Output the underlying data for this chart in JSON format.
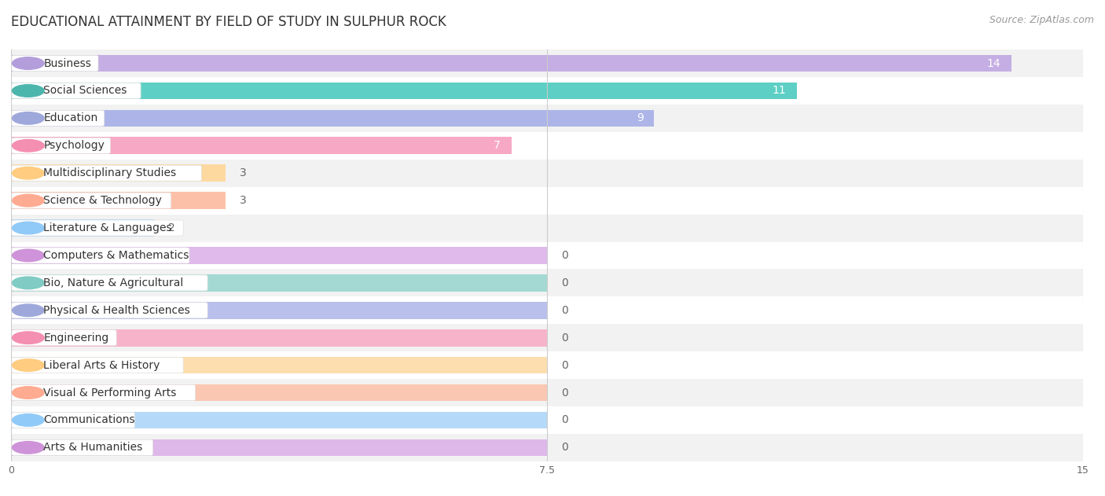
{
  "title": "EDUCATIONAL ATTAINMENT BY FIELD OF STUDY IN SULPHUR ROCK",
  "source": "Source: ZipAtlas.com",
  "categories": [
    "Business",
    "Social Sciences",
    "Education",
    "Psychology",
    "Multidisciplinary Studies",
    "Science & Technology",
    "Literature & Languages",
    "Computers & Mathematics",
    "Bio, Nature & Agricultural",
    "Physical & Health Sciences",
    "Engineering",
    "Liberal Arts & History",
    "Visual & Performing Arts",
    "Communications",
    "Arts & Humanities"
  ],
  "values": [
    14,
    11,
    9,
    7,
    3,
    3,
    2,
    0,
    0,
    0,
    0,
    0,
    0,
    0,
    0
  ],
  "bar_colors": [
    "#c5aee3",
    "#5ecfc5",
    "#adb5e8",
    "#f7a8c4",
    "#fdd9a0",
    "#fcc0a8",
    "#a8d4f8",
    "#dbaee8",
    "#96d5cd",
    "#adb5e8",
    "#f7a8c4",
    "#fdd9a0",
    "#fcc0a8",
    "#a8d4f8",
    "#dbaee8"
  ],
  "pill_border_colors": [
    "#b39ddb",
    "#4db6ac",
    "#9fa8da",
    "#f48fb1",
    "#ffcc80",
    "#ffab91",
    "#90caf9",
    "#ce93d8",
    "#80cbc4",
    "#9fa8da",
    "#f48fb1",
    "#ffcc80",
    "#ffab91",
    "#90caf9",
    "#ce93d8"
  ],
  "xlim": [
    0,
    15
  ],
  "xticks": [
    0,
    7.5,
    15
  ],
  "background_color": "#ffffff",
  "row_bg_colors": [
    "#f2f2f2",
    "#ffffff"
  ],
  "title_fontsize": 12,
  "source_fontsize": 9,
  "bar_label_fontsize": 10,
  "category_fontsize": 10,
  "value_label_inside_color": "#ffffff",
  "value_label_outside_color": "#666666"
}
